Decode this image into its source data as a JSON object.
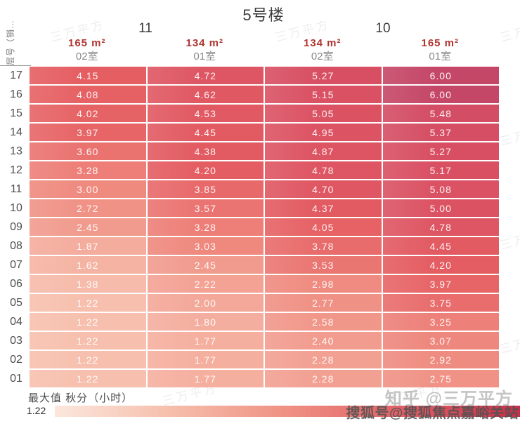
{
  "title": "5号楼",
  "axis_label_vertical": "层号（销…",
  "unit_group_labels": [
    "11",
    "10"
  ],
  "column_headers": [
    {
      "area": "165 m²",
      "room": "02室"
    },
    {
      "area": "134 m²",
      "room": "01室"
    },
    {
      "area": "134 m²",
      "room": "02室"
    },
    {
      "area": "165 m²",
      "room": "01室"
    }
  ],
  "chart_data": {
    "type": "heatmap",
    "title": "5号楼",
    "ylabel": "层号（销…",
    "unit_groups": [
      {
        "label": "11",
        "columns": [
          0,
          1
        ]
      },
      {
        "label": "10",
        "columns": [
          2,
          3
        ]
      }
    ],
    "columns": [
      {
        "group": "11",
        "area": "165 m²",
        "room": "02室"
      },
      {
        "group": "11",
        "area": "134 m²",
        "room": "01室"
      },
      {
        "group": "10",
        "area": "134 m²",
        "room": "02室"
      },
      {
        "group": "10",
        "area": "165 m²",
        "room": "01室"
      }
    ],
    "rows": [
      "17",
      "16",
      "15",
      "14",
      "13",
      "12",
      "11",
      "10",
      "09",
      "08",
      "07",
      "06",
      "05",
      "04",
      "03",
      "02",
      "01"
    ],
    "values": [
      [
        4.15,
        4.72,
        5.27,
        6.0
      ],
      [
        4.08,
        4.62,
        5.15,
        6.0
      ],
      [
        4.02,
        4.53,
        5.05,
        5.48
      ],
      [
        3.97,
        4.45,
        4.95,
        5.37
      ],
      [
        3.6,
        4.38,
        4.87,
        5.27
      ],
      [
        3.28,
        4.2,
        4.78,
        5.17
      ],
      [
        3.0,
        3.85,
        4.7,
        5.08
      ],
      [
        2.72,
        3.57,
        4.37,
        5.0
      ],
      [
        2.45,
        3.28,
        4.05,
        4.78
      ],
      [
        1.87,
        3.03,
        3.78,
        4.45
      ],
      [
        1.62,
        2.45,
        3.53,
        4.2
      ],
      [
        1.38,
        2.22,
        2.98,
        3.97
      ],
      [
        1.22,
        2.0,
        2.77,
        3.75
      ],
      [
        1.22,
        1.8,
        2.58,
        3.25
      ],
      [
        1.22,
        1.77,
        2.4,
        3.07
      ],
      [
        1.22,
        1.77,
        2.28,
        2.92
      ],
      [
        1.22,
        1.77,
        2.28,
        2.75
      ]
    ],
    "value_decimals": 2,
    "color_stops": [
      [
        1.22,
        "#f7c0ae"
      ],
      [
        3.0,
        "#ef8a7f"
      ],
      [
        4.15,
        "#e55e62"
      ],
      [
        5.27,
        "#d84f63"
      ],
      [
        6.0,
        "#c54767"
      ]
    ],
    "value_range": [
      1.22,
      6.0
    ]
  },
  "legend": {
    "title": "最大值 秋分（小时）",
    "min_label": "1.22",
    "gradient": [
      "#fbe7dd",
      "#f6beab",
      "#ef9183",
      "#e05f66",
      "#c4304a"
    ]
  },
  "watermarks": {
    "tile": "三万平方",
    "zhihu": "知乎 @三万平方",
    "sohu": "搜狐号@搜狐焦点嘉峪关站"
  }
}
